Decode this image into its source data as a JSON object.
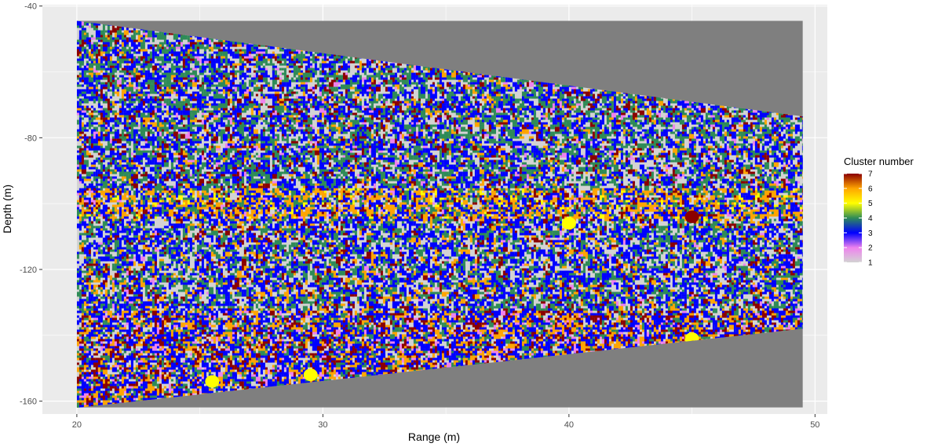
{
  "chart_data": {
    "type": "heatmap",
    "title": "",
    "xlabel": "Range (m)",
    "ylabel": "Depth (m)",
    "xlim": [
      18.6,
      50.5
    ],
    "ylim": [
      -163.9,
      -39.6
    ],
    "x_ticks": [
      20,
      30,
      40,
      50
    ],
    "y_ticks": [
      -40,
      -80,
      -120,
      -160
    ],
    "x_tick_labels": [
      "20",
      "30",
      "40",
      "50"
    ],
    "y_tick_labels": [
      "-40",
      "-80",
      "-120",
      "-160"
    ],
    "grid": true,
    "panel_background": "#ebebeb",
    "no_data_color": "#7f7f7f",
    "data_extent": {
      "x": [
        20,
        49.5
      ],
      "top_edge_depth": [
        -44.5,
        -73.5
      ],
      "bottom_edge_depth": [
        -162,
        -138
      ]
    },
    "no_data_region": {
      "x": [
        20,
        49.5
      ],
      "depth": [
        -161.9,
        -44.5
      ]
    },
    "legend": {
      "title": "Cluster number",
      "position": "right",
      "entries": [
        {
          "label": "7",
          "color": "#8b0000"
        },
        {
          "label": "6",
          "color": "#ffa500"
        },
        {
          "label": "5",
          "color": "#ffff00"
        },
        {
          "label": "4",
          "color": "#2e8b57"
        },
        {
          "label": "3",
          "color": "#0000ff"
        },
        {
          "label": "2",
          "color": "#ee82ee"
        },
        {
          "label": "1",
          "color": "#d3d3d3"
        }
      ]
    },
    "cluster_colors": {
      "1": "#d3d3d3",
      "2": "#ee82ee",
      "3": "#0000ff",
      "4": "#2e8b57",
      "5": "#ffff00",
      "6": "#ffa500",
      "7": "#8b0000"
    },
    "depth_bands": [
      {
        "depth": [
          -60,
          -95
        ],
        "dominant": [
          1,
          3,
          4
        ],
        "weights": [
          0.48,
          0.2,
          0.2,
          0.04,
          0.06,
          0.02
        ]
      },
      {
        "depth": [
          -95,
          -104
        ],
        "dominant": [
          7,
          3
        ],
        "weights": [
          0.35,
          0.2,
          0.12,
          0.22,
          0.06,
          0.02,
          0.03
        ]
      },
      {
        "depth": [
          -104,
          -132
        ],
        "dominant": [
          1,
          3,
          4
        ],
        "weights": [
          0.5,
          0.22,
          0.16,
          0.06,
          0.05,
          0.01
        ]
      },
      {
        "depth": [
          -132,
          -162
        ],
        "dominant": [
          3,
          6,
          7
        ],
        "weights": [
          0.35,
          0.25,
          0.1,
          0.14,
          0.12,
          0.04
        ]
      }
    ],
    "features": [
      {
        "cluster": 5,
        "x": 40,
        "depth": -106
      },
      {
        "cluster": 7,
        "x": 45,
        "depth": -104
      },
      {
        "cluster": 5,
        "x": 45,
        "depth": -141
      },
      {
        "cluster": 5,
        "x": 29.5,
        "depth": -152
      },
      {
        "cluster": 5,
        "x": 25.5,
        "depth": -154
      }
    ]
  }
}
